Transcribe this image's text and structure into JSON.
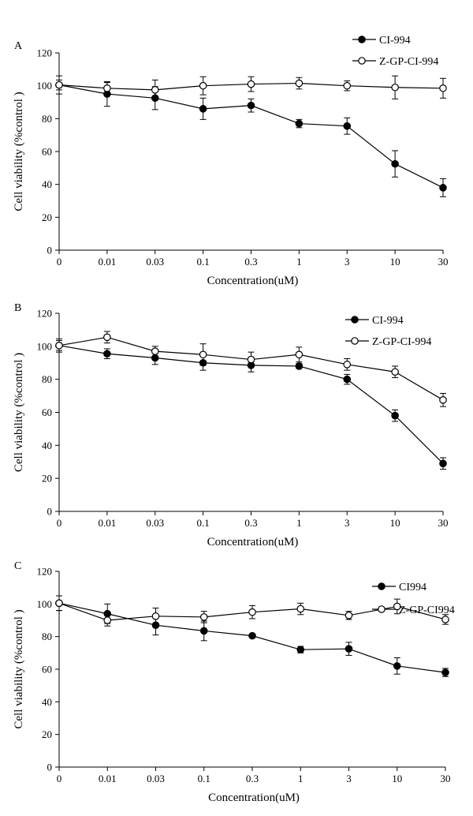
{
  "chart_data": [
    {
      "type": "line",
      "panel_label": "A",
      "categories": [
        "0",
        "0.01",
        "0.03",
        "0.1",
        "0.3",
        "1",
        "3",
        "10",
        "30"
      ],
      "xlabel": "Concentration(uM)",
      "ylabel": "Cell viability  (%control )",
      "ylim": [
        0,
        120
      ],
      "yticks": [
        0,
        20,
        40,
        60,
        80,
        100,
        120
      ],
      "grid": false,
      "legend_position": "top-right",
      "series": [
        {
          "name": "CI-994",
          "marker": "filled-circle",
          "values": [
            100.5,
            95,
            92.5,
            86,
            88,
            77,
            75.5,
            52.5,
            38
          ],
          "errors": [
            5.5,
            7.5,
            7,
            6.5,
            4,
            2.5,
            5,
            8,
            5.5
          ]
        },
        {
          "name": "Z-GP-CI-994",
          "marker": "open-circle",
          "values": [
            100.5,
            98.5,
            97.5,
            100,
            101,
            101.5,
            100,
            99,
            98.5
          ],
          "errors": [
            3,
            3.5,
            6,
            5.5,
            4.5,
            3.5,
            3,
            7,
            6
          ]
        }
      ]
    },
    {
      "type": "line",
      "panel_label": "B",
      "categories": [
        "0",
        "0.01",
        "0.03",
        "0.1",
        "0.3",
        "1",
        "3",
        "10",
        "30"
      ],
      "xlabel": "Concentration(uM)",
      "ylabel": "Cell viability  (%control )",
      "ylim": [
        0,
        120
      ],
      "yticks": [
        0,
        20,
        40,
        60,
        80,
        100,
        120
      ],
      "grid": false,
      "legend_position": "top-right",
      "series": [
        {
          "name": "CI-994",
          "marker": "filled-circle",
          "values": [
            100.5,
            95.5,
            93,
            90,
            88.5,
            88,
            80,
            58,
            29
          ],
          "errors": [
            4,
            3,
            4,
            4.5,
            4,
            1.5,
            3,
            3.5,
            3.5
          ]
        },
        {
          "name": "Z-GP-CI-994",
          "marker": "open-circle",
          "values": [
            100.5,
            105.5,
            97,
            95,
            92,
            95,
            89,
            84.5,
            67.5
          ],
          "errors": [
            3,
            3.5,
            3,
            6.5,
            4.5,
            4.5,
            3.5,
            3.5,
            4
          ]
        }
      ]
    },
    {
      "type": "line",
      "panel_label": "C",
      "categories": [
        "0",
        "0.01",
        "0.03",
        "0.1",
        "0.3",
        "1",
        "3",
        "10",
        "30"
      ],
      "xlabel": "Concentration(uM)",
      "ylabel": "Cell viability  (%control )",
      "ylim": [
        0,
        120
      ],
      "yticks": [
        0,
        20,
        40,
        60,
        80,
        100,
        120
      ],
      "grid": false,
      "legend_position": "top-right",
      "series": [
        {
          "name": "CI994",
          "marker": "filled-circle",
          "values": [
            100.5,
            94,
            87,
            83.5,
            80.5,
            72,
            72.5,
            62,
            58
          ],
          "errors": [
            4.5,
            6,
            6,
            6,
            1,
            2,
            4,
            5,
            2.5
          ]
        },
        {
          "name": "Z-GP-CI994",
          "marker": "open-circle",
          "values": [
            100.5,
            90,
            92.5,
            92,
            95,
            97,
            93,
            98.5,
            90.5
          ],
          "errors": [
            4.5,
            3.5,
            5,
            3.5,
            4,
            3.5,
            2.5,
            4.5,
            3
          ]
        }
      ]
    }
  ]
}
